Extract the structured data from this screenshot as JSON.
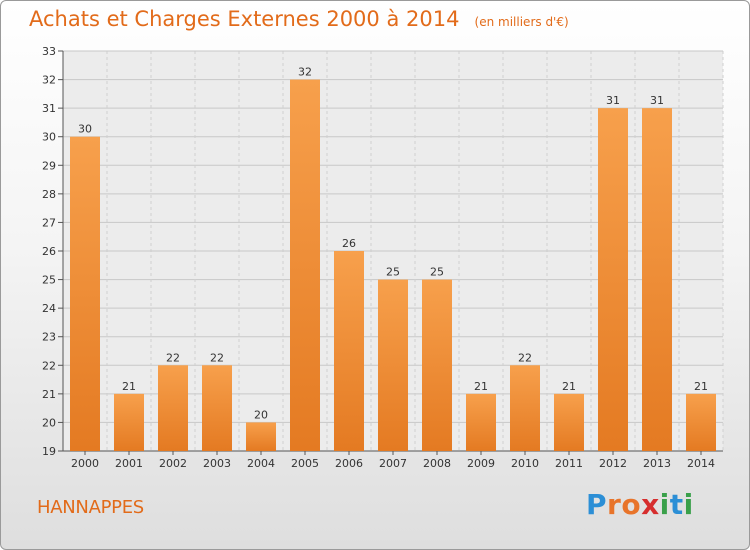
{
  "header": {
    "title": "Achats et Charges Externes 2000 à 2014",
    "subtitle": "(en milliers d'€)"
  },
  "footer": {
    "commune": "HANNAPPES",
    "logo": "Proxiti"
  },
  "colors": {
    "accent": "#e26b1a",
    "bar_light": "#f7a04c",
    "bar_dark": "#e47a22"
  },
  "chart_data": {
    "type": "bar",
    "title": "Achats et Charges Externes 2000 à 2014",
    "subtitle": "(en milliers d'€)",
    "xlabel": "",
    "ylabel": "",
    "categories": [
      "2000",
      "2001",
      "2002",
      "2003",
      "2004",
      "2005",
      "2006",
      "2007",
      "2008",
      "2009",
      "2010",
      "2011",
      "2012",
      "2013",
      "2014"
    ],
    "values": [
      30,
      21,
      22,
      22,
      20,
      32,
      26,
      25,
      25,
      21,
      22,
      21,
      31,
      31,
      21
    ],
    "ylim": [
      19,
      33
    ],
    "yticks": [
      19,
      20,
      21,
      22,
      23,
      24,
      25,
      26,
      27,
      28,
      29,
      30,
      31,
      32,
      33
    ],
    "grid": true,
    "legend": "none"
  }
}
